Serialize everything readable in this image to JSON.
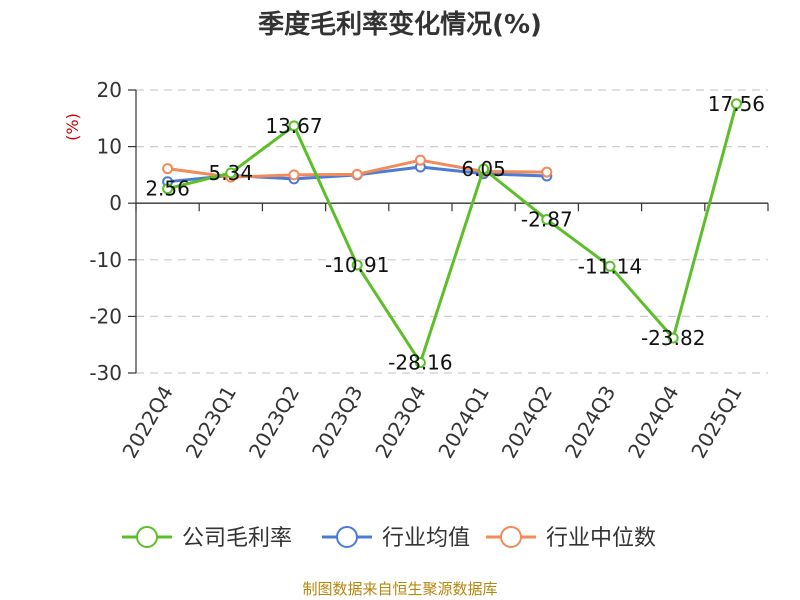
{
  "chart_data": {
    "type": "line",
    "title": "季度毛利率变化情况(%)",
    "ylabel": "(%)",
    "xlabel": "",
    "categories": [
      "2022Q4",
      "2023Q1",
      "2023Q2",
      "2023Q3",
      "2023Q4",
      "2024Q1",
      "2024Q2",
      "2024Q3",
      "2024Q4",
      "2025Q1"
    ],
    "ylim": [
      -30,
      20
    ],
    "yticks": [
      20,
      10,
      0,
      -10,
      -20,
      -30
    ],
    "grid": true,
    "legend_position": "bottom",
    "series": [
      {
        "name": "公司毛利率",
        "color": "#5cbf2a",
        "values": [
          2.56,
          5.34,
          13.67,
          -10.91,
          -28.16,
          6.05,
          -2.87,
          -11.14,
          -23.82,
          17.56
        ],
        "labels": [
          "2.56",
          "5.34",
          "13.67",
          "-10.91",
          "-28.16",
          "6.05",
          "-2.87",
          "-11.14",
          "-23.82",
          "17.56"
        ]
      },
      {
        "name": "行业均值",
        "color": "#4a7bd6",
        "values": [
          3.8,
          4.9,
          4.3,
          5.0,
          6.4,
          5.2,
          4.8,
          null,
          null,
          null
        ]
      },
      {
        "name": "行业中位数",
        "color": "#f28a5a",
        "values": [
          6.1,
          4.6,
          5.0,
          5.1,
          7.6,
          5.6,
          5.5,
          null,
          null,
          null
        ]
      }
    ]
  },
  "source_note": "制图数据来自恒生聚源数据库"
}
